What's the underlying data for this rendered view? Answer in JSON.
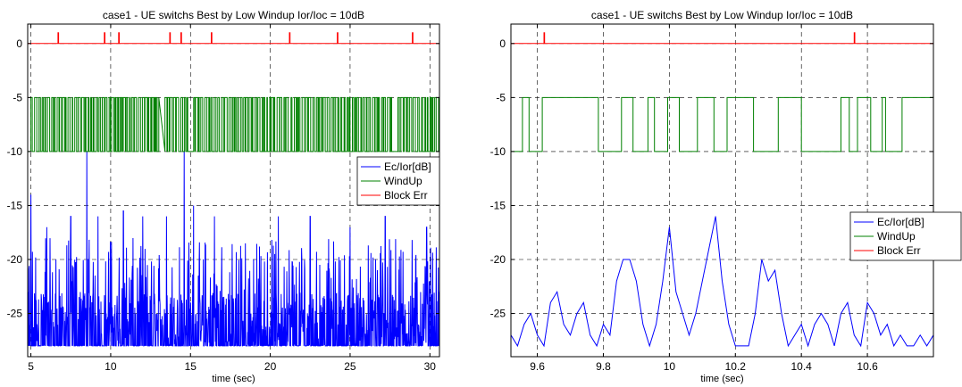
{
  "chart_data": [
    {
      "type": "line",
      "title": "case1 - UE switchs Best by Low Windup Ior/Ioc = 10dB",
      "xlabel": "time (sec)",
      "ylabel": "",
      "xlim": [
        4.8,
        30.6
      ],
      "ylim": [
        -29,
        1.8
      ],
      "xticks": [
        5,
        10,
        15,
        20,
        25,
        30
      ],
      "yticks": [
        0,
        -5,
        -10,
        -15,
        -20,
        -25
      ],
      "grid": true,
      "legend": {
        "position": "right",
        "entries": [
          "Ec/Ior[dB]",
          "WindUp",
          "Block Err"
        ]
      },
      "series": [
        {
          "name": "Ec/Ior[dB]",
          "color": "#0000ff",
          "description": "dense noisy trace between -28 and about -14, with spikes",
          "baseline": -28,
          "typical_range": [
            -28,
            -21
          ],
          "spikes": [
            {
              "x": 5.0,
              "y": -14
            },
            {
              "x": 6.0,
              "y": -17
            },
            {
              "x": 7.5,
              "y": -16
            },
            {
              "x": 8.5,
              "y": -10
            },
            {
              "x": 9.2,
              "y": -16
            },
            {
              "x": 10.8,
              "y": -15.5
            },
            {
              "x": 12.0,
              "y": -16
            },
            {
              "x": 13.5,
              "y": -16
            },
            {
              "x": 14.6,
              "y": -10
            },
            {
              "x": 15.2,
              "y": -15
            },
            {
              "x": 16.5,
              "y": -16
            },
            {
              "x": 20.5,
              "y": -16
            },
            {
              "x": 22.5,
              "y": -16
            },
            {
              "x": 25.0,
              "y": -17
            },
            {
              "x": 27.2,
              "y": -16
            },
            {
              "x": 29.8,
              "y": -17
            }
          ]
        },
        {
          "name": "WindUp",
          "color": "#008000",
          "description": "square wave switching rapidly between -5 and -10",
          "levels": [
            -5,
            -10
          ],
          "segments": [
            {
              "x": 4.8,
              "y": -10
            },
            {
              "x": 5.0,
              "y": -5
            },
            {
              "x": 13.0,
              "y": -10
            },
            {
              "x": 13.4,
              "y": -5
            },
            {
              "x": 14.8,
              "y": -10
            },
            {
              "x": 15.2,
              "y": -5
            },
            {
              "x": 21.0,
              "y": -10
            },
            {
              "x": 21.3,
              "y": -5
            },
            {
              "x": 27.6,
              "y": -10
            },
            {
              "x": 28.0,
              "y": -5
            },
            {
              "x": 30.6,
              "y": -5
            }
          ]
        },
        {
          "name": "Block Err",
          "color": "#ff0000",
          "description": "zero with occasional pulses to 1",
          "baseline": 0,
          "pulses": [
            6.7,
            9.6,
            10.5,
            13.7,
            14.4,
            16.3,
            21.2,
            24.2,
            28.9
          ]
        }
      ]
    },
    {
      "type": "line",
      "title": "case1 - UE switchs Best by Low Windup Ior/Ioc = 10dB",
      "xlabel": "time (sec)",
      "ylabel": "",
      "xlim": [
        9.52,
        10.8
      ],
      "ylim": [
        -29,
        1.8
      ],
      "xticks": [
        9.6,
        9.8,
        10,
        10.2,
        10.4,
        10.6
      ],
      "yticks": [
        0,
        -5,
        -10,
        -15,
        -20,
        -25
      ],
      "grid": true,
      "legend": {
        "position": "right",
        "entries": [
          "Ec/Ior[dB]",
          "WindUp",
          "Block Err"
        ]
      },
      "series": [
        {
          "name": "Ec/Ior[dB]",
          "color": "#0000ff",
          "points": [
            [
              9.52,
              -27
            ],
            [
              9.54,
              -28
            ],
            [
              9.56,
              -26
            ],
            [
              9.58,
              -25
            ],
            [
              9.6,
              -27
            ],
            [
              9.62,
              -28
            ],
            [
              9.64,
              -24
            ],
            [
              9.66,
              -23
            ],
            [
              9.68,
              -26
            ],
            [
              9.7,
              -27
            ],
            [
              9.72,
              -25
            ],
            [
              9.74,
              -24
            ],
            [
              9.76,
              -27
            ],
            [
              9.78,
              -28
            ],
            [
              9.8,
              -26
            ],
            [
              9.82,
              -27
            ],
            [
              9.84,
              -22
            ],
            [
              9.86,
              -20
            ],
            [
              9.88,
              -20
            ],
            [
              9.9,
              -22
            ],
            [
              9.92,
              -26
            ],
            [
              9.94,
              -28
            ],
            [
              9.96,
              -26
            ],
            [
              9.98,
              -22
            ],
            [
              10.0,
              -17
            ],
            [
              10.02,
              -23
            ],
            [
              10.04,
              -25
            ],
            [
              10.06,
              -27
            ],
            [
              10.08,
              -25
            ],
            [
              10.1,
              -22
            ],
            [
              10.12,
              -19
            ],
            [
              10.14,
              -16
            ],
            [
              10.16,
              -22
            ],
            [
              10.18,
              -26
            ],
            [
              10.2,
              -28
            ],
            [
              10.22,
              -28
            ],
            [
              10.24,
              -28
            ],
            [
              10.26,
              -25
            ],
            [
              10.28,
              -20
            ],
            [
              10.3,
              -22
            ],
            [
              10.32,
              -21
            ],
            [
              10.34,
              -25
            ],
            [
              10.36,
              -28
            ],
            [
              10.38,
              -27
            ],
            [
              10.4,
              -26
            ],
            [
              10.42,
              -28
            ],
            [
              10.44,
              -26
            ],
            [
              10.46,
              -25
            ],
            [
              10.48,
              -26
            ],
            [
              10.5,
              -28
            ],
            [
              10.52,
              -25
            ],
            [
              10.54,
              -24
            ],
            [
              10.56,
              -27
            ],
            [
              10.58,
              -28
            ],
            [
              10.6,
              -24
            ],
            [
              10.62,
              -25
            ],
            [
              10.64,
              -27
            ],
            [
              10.66,
              -26
            ],
            [
              10.68,
              -28
            ],
            [
              10.7,
              -27
            ],
            [
              10.72,
              -28
            ],
            [
              10.74,
              -28
            ],
            [
              10.76,
              -27
            ],
            [
              10.78,
              -28
            ],
            [
              10.8,
              -27
            ]
          ]
        },
        {
          "name": "WindUp",
          "color": "#008000",
          "steps": [
            [
              9.52,
              -10
            ],
            [
              9.555,
              -5
            ],
            [
              9.575,
              -10
            ],
            [
              9.615,
              -5
            ],
            [
              9.785,
              -10
            ],
            [
              9.855,
              -5
            ],
            [
              9.89,
              -10
            ],
            [
              9.935,
              -5
            ],
            [
              9.955,
              -10
            ],
            [
              9.995,
              -5
            ],
            [
              10.03,
              -10
            ],
            [
              10.085,
              -5
            ],
            [
              10.135,
              -10
            ],
            [
              10.175,
              -5
            ],
            [
              10.255,
              -10
            ],
            [
              10.33,
              -5
            ],
            [
              10.4,
              -10
            ],
            [
              10.52,
              -5
            ],
            [
              10.545,
              -10
            ],
            [
              10.57,
              -5
            ],
            [
              10.61,
              -10
            ],
            [
              10.645,
              -5
            ],
            [
              10.655,
              -10
            ],
            [
              10.705,
              -5
            ],
            [
              10.8,
              -5
            ]
          ]
        },
        {
          "name": "Block Err",
          "color": "#ff0000",
          "baseline": 0,
          "pulses": [
            9.62,
            10.56
          ]
        }
      ]
    }
  ]
}
